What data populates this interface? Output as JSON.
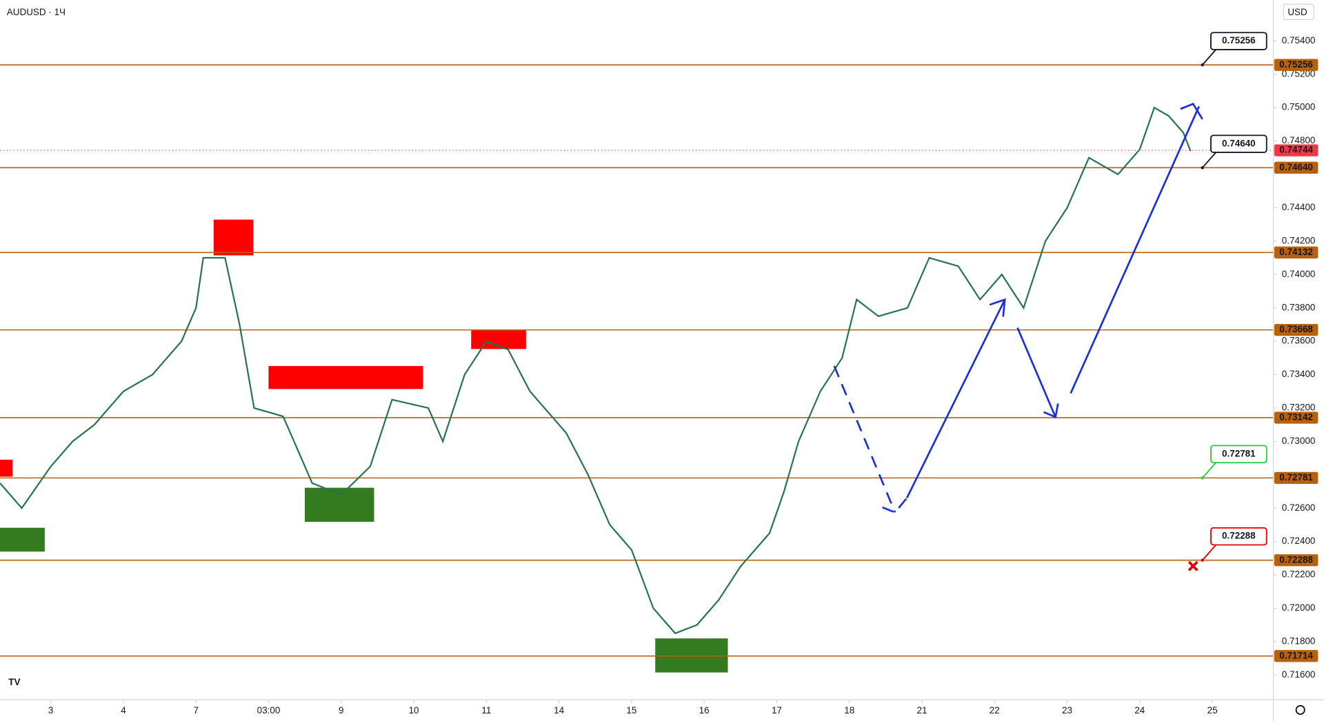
{
  "title": "AUDUSD · 1Ч",
  "currency": "USD",
  "chart_data": {
    "type": "line",
    "x": [
      -0.7,
      -0.4,
      0,
      0.3,
      0.6,
      1.0,
      1.4,
      1.8,
      2.0,
      2.1,
      2.4,
      2.6,
      2.8,
      3.2,
      3.6,
      4.0,
      4.4,
      4.7,
      5.2,
      5.4,
      5.7,
      6.0,
      6.3,
      6.6,
      6.9,
      7.1,
      7.4,
      7.7,
      8.0,
      8.3,
      8.6,
      8.9,
      9.2,
      9.5,
      9.9,
      10.1,
      10.3,
      10.6,
      10.9,
      11.1,
      11.4,
      11.8,
      12.1,
      12.5,
      12.8,
      13.1,
      13.4,
      13.7,
      14.0,
      14.3,
      14.7,
      15.0,
      15.2,
      15.4,
      15.6,
      15.7
    ],
    "series": [
      {
        "name": "AUDUSD",
        "color": "#26734d",
        "values": [
          0.7275,
          0.726,
          0.7285,
          0.73,
          0.731,
          0.733,
          0.734,
          0.736,
          0.738,
          0.741,
          0.741,
          0.737,
          0.732,
          0.7315,
          0.7275,
          0.7268,
          0.7285,
          0.7325,
          0.732,
          0.73,
          0.734,
          0.736,
          0.7355,
          0.733,
          0.7315,
          0.7305,
          0.728,
          0.725,
          0.7235,
          0.72,
          0.7185,
          0.719,
          0.7205,
          0.7225,
          0.7245,
          0.727,
          0.73,
          0.733,
          0.735,
          0.7385,
          0.7375,
          0.738,
          0.741,
          0.7405,
          0.7385,
          0.74,
          0.738,
          0.742,
          0.744,
          0.747,
          0.746,
          0.7475,
          0.75,
          0.7495,
          0.7485,
          0.7474
        ]
      }
    ],
    "xlim": [
      -0.7,
      16.84
    ],
    "xticks": [
      {
        "value": 0,
        "label": "3"
      },
      {
        "value": 1,
        "label": "4"
      },
      {
        "value": 2,
        "label": "7"
      },
      {
        "value": 3,
        "label": "03:00"
      },
      {
        "value": 4,
        "label": "9"
      },
      {
        "value": 5,
        "label": "10"
      },
      {
        "value": 6,
        "label": "11"
      },
      {
        "value": 7,
        "label": "14"
      },
      {
        "value": 8,
        "label": "15"
      },
      {
        "value": 9,
        "label": "16"
      },
      {
        "value": 10,
        "label": "17"
      },
      {
        "value": 11,
        "label": "18"
      },
      {
        "value": 12,
        "label": "21"
      },
      {
        "value": 13,
        "label": "22"
      },
      {
        "value": 14,
        "label": "23"
      },
      {
        "value": 15,
        "label": "24"
      },
      {
        "value": 16,
        "label": "25"
      }
    ],
    "ylim": [
      0.71452,
      0.75645
    ],
    "yticks": [
      {
        "value": 0.754,
        "label": "0.75400"
      },
      {
        "value": 0.752,
        "label": "0.75200"
      },
      {
        "value": 0.75,
        "label": "0.75000"
      },
      {
        "value": 0.748,
        "label": "0.74800"
      },
      {
        "value": 0.744,
        "label": "0.74400"
      },
      {
        "value": 0.742,
        "label": "0.74200"
      },
      {
        "value": 0.74,
        "label": "0.74000"
      },
      {
        "value": 0.738,
        "label": "0.73800"
      },
      {
        "value": 0.736,
        "label": "0.73600"
      },
      {
        "value": 0.734,
        "label": "0.73400"
      },
      {
        "value": 0.732,
        "label": "0.73200"
      },
      {
        "value": 0.73,
        "label": "0.73000"
      },
      {
        "value": 0.726,
        "label": "0.72600"
      },
      {
        "value": 0.724,
        "label": "0.72400"
      },
      {
        "value": 0.722,
        "label": "0.72200"
      },
      {
        "value": 0.72,
        "label": "0.72000"
      },
      {
        "value": 0.718,
        "label": "0.71800"
      },
      {
        "value": 0.716,
        "label": "0.71600"
      }
    ],
    "levels": [
      {
        "value": 0.75256,
        "label": "0.75256"
      },
      {
        "value": 0.7464,
        "label": "0.74640"
      },
      {
        "value": 0.74132,
        "label": "0.74132"
      },
      {
        "value": 0.73668,
        "label": "0.73668"
      },
      {
        "value": 0.73142,
        "label": "0.73142"
      },
      {
        "value": 0.72781,
        "label": "0.72781"
      },
      {
        "value": 0.72288,
        "label": "0.72288"
      },
      {
        "value": 0.71714,
        "label": "0.71714"
      }
    ],
    "level_color": "#b8600b",
    "last_price": {
      "value": 0.74744,
      "label": "0.74744",
      "color": "#f23645"
    }
  }
}
